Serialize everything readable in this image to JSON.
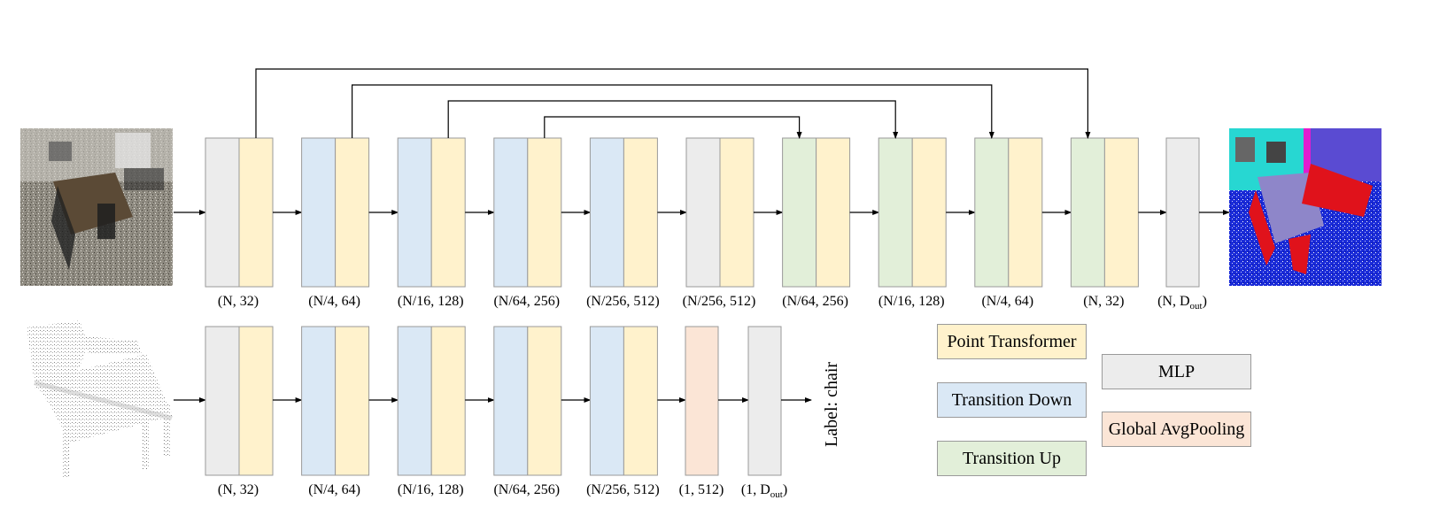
{
  "colors": {
    "mlp": "#ececec",
    "point_transformer": "#fff2cc",
    "transition_down": "#dae8f5",
    "transition_up": "#e2efd9",
    "global_avgpooling": "#fbe5d6",
    "border": "#9a9a9a",
    "arrow": "#000000"
  },
  "segmentation": {
    "blocks": [
      {
        "left": "mlp",
        "right": "point_transformer",
        "dim": "(N, 32)"
      },
      {
        "left": "transition_down",
        "right": "point_transformer",
        "dim": "(N/4, 64)"
      },
      {
        "left": "transition_down",
        "right": "point_transformer",
        "dim": "(N/16, 128)"
      },
      {
        "left": "transition_down",
        "right": "point_transformer",
        "dim": "(N/64, 256)"
      },
      {
        "left": "transition_down",
        "right": "point_transformer",
        "dim": "(N/256, 512)"
      },
      {
        "left": "mlp",
        "right": "point_transformer",
        "dim": "(N/256, 512)"
      },
      {
        "left": "transition_up",
        "right": "point_transformer",
        "dim": "(N/64, 256)"
      },
      {
        "left": "transition_up",
        "right": "point_transformer",
        "dim": "(N/16, 128)"
      },
      {
        "left": "transition_up",
        "right": "point_transformer",
        "dim": "(N/4, 64)"
      },
      {
        "left": "transition_up",
        "right": "point_transformer",
        "dim": "(N, 32)"
      }
    ],
    "output": {
      "dim_main": "(N, D",
      "dim_sub": "out",
      "dim_end": ")"
    }
  },
  "classification": {
    "blocks": [
      {
        "left": "mlp",
        "right": "point_transformer",
        "dim": "(N, 32)"
      },
      {
        "left": "transition_down",
        "right": "point_transformer",
        "dim": "(N/4, 64)"
      },
      {
        "left": "transition_down",
        "right": "point_transformer",
        "dim": "(N/16, 128)"
      },
      {
        "left": "transition_down",
        "right": "point_transformer",
        "dim": "(N/64, 256)"
      },
      {
        "left": "transition_down",
        "right": "point_transformer",
        "dim": "(N/256, 512)"
      }
    ],
    "pool_dim": "(1, 512)",
    "output": {
      "dim_main": "(1, D",
      "dim_sub": "out",
      "dim_end": ")"
    },
    "label": "Label: chair"
  },
  "legend": {
    "point_transformer": "Point Transformer",
    "transition_down": "Transition Down",
    "transition_up": "Transition Up",
    "mlp": "MLP",
    "global_avgpooling": "Global AvgPooling"
  }
}
